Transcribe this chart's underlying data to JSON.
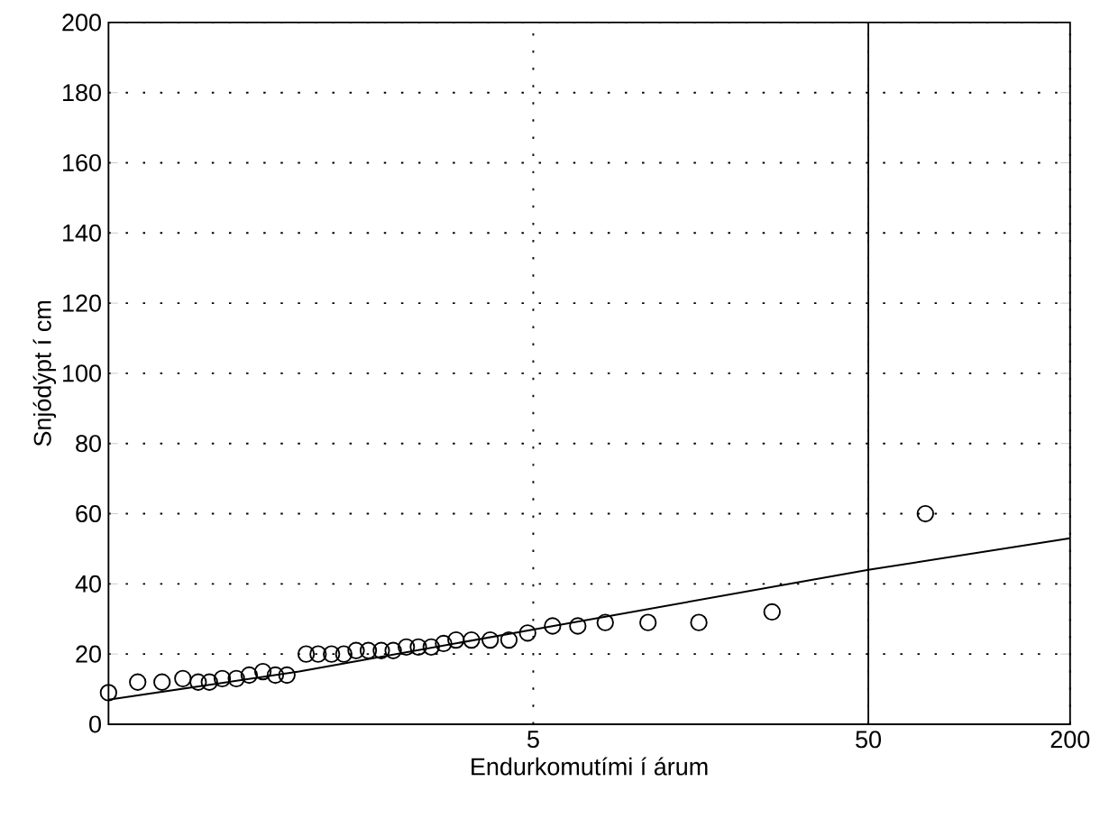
{
  "chart_data": {
    "type": "scatter",
    "xlabel": "Endurkomutími í árum",
    "ylabel": "Snjódýpt í cm",
    "log": "x",
    "xlim": [
      0.27,
      200
    ],
    "ylim": [
      0,
      200
    ],
    "xticks": [
      5,
      50,
      200
    ],
    "yticks": [
      0,
      20,
      40,
      60,
      80,
      100,
      120,
      140,
      160,
      180,
      200
    ],
    "grid": true,
    "marker": "circle",
    "ref_lines": [
      {
        "axis": "x",
        "value": 50,
        "line_style": "solid",
        "color": "#000000"
      }
    ],
    "series": [
      {
        "color": "#000000",
        "x": [
          0.27,
          0.33,
          0.39,
          0.45,
          0.5,
          0.54,
          0.59,
          0.65,
          0.71,
          0.78,
          0.85,
          0.92,
          1.05,
          1.14,
          1.25,
          1.36,
          1.48,
          1.61,
          1.76,
          1.91,
          2.09,
          2.27,
          2.48,
          2.7,
          2.94,
          3.27,
          3.72,
          4.23,
          4.81,
          5.71,
          6.79,
          8.2,
          11,
          15.6,
          25.8,
          74
        ],
        "values": [
          9,
          12,
          12,
          13,
          12,
          12,
          13,
          13,
          14,
          15,
          14,
          14,
          20,
          20,
          20,
          20,
          21,
          21,
          21,
          21,
          22,
          22,
          22,
          23,
          24,
          24,
          24,
          24,
          26,
          28,
          28,
          29,
          29,
          29,
          32,
          60
        ]
      },
      {
        "type": "line",
        "color": "#000000",
        "marker": "none",
        "line_style": "solid",
        "x": [
          0.27,
          1,
          5,
          50,
          200
        ],
        "values": [
          7,
          15,
          27,
          44,
          53
        ]
      }
    ]
  }
}
